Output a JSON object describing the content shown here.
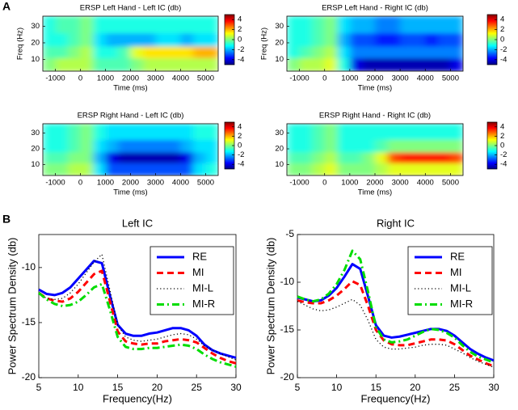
{
  "panel_labels": [
    "A",
    "B"
  ],
  "chart_data": [
    {
      "type": "heatmap",
      "title": "ERSP Left Hand - Left IC (db)",
      "xlabel": "Time (ms)",
      "ylabel": "Freq (Hz)",
      "colormap": "jet",
      "x_bins": [
        -1500,
        -1000,
        -500,
        0,
        500,
        1000,
        1500,
        2000,
        2500,
        3000,
        3500,
        4000,
        4500,
        5000,
        5500
      ],
      "y_bins": [
        3,
        11,
        18,
        26,
        36
      ],
      "values": [
        [
          0,
          0.5,
          0.5,
          0.5,
          -0.5,
          -0.5,
          -0.5,
          0,
          0.5,
          0.5,
          0.5,
          0.5,
          0.5,
          0.5
        ],
        [
          -0.5,
          -0.5,
          0,
          0.5,
          -1,
          -1,
          -0.5,
          1,
          1.5,
          1.5,
          1.5,
          1.5,
          2,
          2
        ],
        [
          -1,
          -1,
          -0.5,
          0,
          -1.5,
          -2,
          -2,
          -2,
          -2,
          -1.5,
          -1.5,
          -2,
          -1.5,
          -1.5
        ],
        [
          -1,
          -0.5,
          -0.5,
          0,
          -1,
          -1,
          -1,
          -1,
          -1,
          -1,
          -1,
          -1,
          -1,
          -1
        ]
      ],
      "xlim": [
        -1500,
        5500
      ],
      "ylim": [
        3,
        36
      ],
      "xticks": [
        -1000,
        0,
        1000,
        2000,
        3000,
        4000,
        5000
      ],
      "yticks": [
        10,
        20,
        30
      ],
      "colorbar": {
        "clim": [
          -5,
          5
        ],
        "ticks": [
          4,
          2,
          0,
          -2,
          -4
        ]
      }
    },
    {
      "type": "heatmap",
      "title": "ERSP Left Hand - Right IC (db)",
      "xlabel": "Time (ms)",
      "ylabel": "Freq (Hz)",
      "colormap": "jet",
      "x_bins": [
        -1500,
        -1000,
        -500,
        0,
        500,
        1000,
        1500,
        2000,
        2500,
        3000,
        3500,
        4000,
        4500,
        5000,
        5500
      ],
      "y_bins": [
        3,
        11,
        18,
        26,
        36
      ],
      "values": [
        [
          0,
          0.5,
          0.5,
          1,
          -1,
          -4,
          -4.5,
          -4.5,
          -4.5,
          -4.5,
          -4.5,
          -4.5,
          -4.5,
          -4
        ],
        [
          -1,
          -0.5,
          0,
          0.5,
          -1.5,
          -2.5,
          -2.5,
          -2.5,
          -2.5,
          -2.5,
          -2.5,
          -2.5,
          -2.5,
          -2.5
        ],
        [
          -1,
          -1,
          -0.5,
          0,
          -2,
          -3,
          -3,
          -3.5,
          -3.5,
          -3,
          -3,
          -3.5,
          -3,
          -3
        ],
        [
          -1,
          -1,
          -0.5,
          0,
          -1.5,
          -2,
          -2,
          -2.5,
          -2.5,
          -2,
          -2,
          -2,
          -2,
          -2
        ]
      ],
      "xlim": [
        -1500,
        5500
      ],
      "ylim": [
        3,
        36
      ],
      "xticks": [
        -1000,
        0,
        1000,
        2000,
        3000,
        4000,
        5000
      ],
      "yticks": [
        10,
        20,
        30
      ],
      "colorbar": {
        "clim": [
          -5,
          5
        ],
        "ticks": [
          4,
          2,
          0,
          -2,
          -4
        ]
      }
    },
    {
      "type": "heatmap",
      "title": "ERSP Right Hand - Left IC (db)",
      "xlabel": "Time (ms)",
      "colormap": "jet",
      "x_bins": [
        -1500,
        -1000,
        -500,
        0,
        500,
        1000,
        1500,
        2000,
        2500,
        3000,
        3500,
        4000,
        4500,
        5000,
        5500
      ],
      "y_bins": [
        3,
        11,
        18,
        26,
        36
      ],
      "values": [
        [
          0,
          0,
          0.5,
          0.5,
          -1.5,
          -3,
          -3,
          -3,
          -3,
          -3,
          -3,
          -3,
          -1.5,
          -1
        ],
        [
          -0.5,
          -0.5,
          0,
          0,
          -2,
          -4,
          -4.5,
          -4.5,
          -4.5,
          -4.5,
          -4.5,
          -4,
          -2,
          -1.5
        ],
        [
          -1,
          -1,
          -0.5,
          0,
          -1.5,
          -2,
          -2.5,
          -2.5,
          -2.5,
          -2.5,
          -2.5,
          -2,
          -1.5,
          -1.5
        ],
        [
          -1,
          -1,
          -0.5,
          0,
          -1,
          -1.5,
          -1.5,
          -1.5,
          -1.5,
          -1.5,
          -1.5,
          -1.5,
          -1,
          -1
        ]
      ],
      "xlim": [
        -1500,
        5500
      ],
      "ylim": [
        3,
        36
      ],
      "xticks": [
        -1000,
        0,
        1000,
        2000,
        3000,
        4000,
        5000
      ],
      "yticks": [
        10,
        20,
        30
      ],
      "colorbar": {
        "clim": [
          -5,
          5
        ],
        "ticks": [
          4,
          2,
          0,
          -2,
          -4
        ]
      }
    },
    {
      "type": "heatmap",
      "title": "ERSP Right Hand - Right IC (db)",
      "xlabel": "Time (ms)",
      "colormap": "jet",
      "x_bins": [
        -1500,
        -1000,
        -500,
        0,
        500,
        1000,
        1500,
        2000,
        2500,
        3000,
        3500,
        4000,
        4500,
        5000,
        5500
      ],
      "y_bins": [
        3,
        11,
        18,
        26,
        36
      ],
      "values": [
        [
          0,
          0,
          0.5,
          1,
          0,
          0,
          0,
          0.5,
          1,
          1,
          1,
          1,
          1,
          1
        ],
        [
          -0.5,
          -0.5,
          0,
          0.5,
          -0.5,
          -0.5,
          0,
          1,
          3,
          3.5,
          3.5,
          3.5,
          3.5,
          3
        ],
        [
          -1,
          -1,
          -0.5,
          0,
          -1,
          -1,
          -1,
          -0.5,
          0,
          0,
          0,
          0,
          0,
          0
        ],
        [
          -1,
          -1,
          -0.5,
          0,
          -1,
          -1,
          -1,
          -1,
          -1,
          -1,
          -1,
          -1,
          -1,
          -1
        ]
      ],
      "xlim": [
        -1500,
        5500
      ],
      "ylim": [
        3,
        36
      ],
      "xticks": [
        -1000,
        0,
        1000,
        2000,
        3000,
        4000,
        5000
      ],
      "yticks": [
        10,
        20,
        30
      ],
      "colorbar": {
        "clim": [
          -5,
          5
        ],
        "ticks": [
          4,
          2,
          0,
          -2,
          -4
        ]
      }
    },
    {
      "type": "line",
      "title": "Left IC",
      "xlabel": "Frequency(Hz)",
      "ylabel": "Power Spectrum Density (db)",
      "legend": "upper right",
      "x": [
        5,
        6,
        7,
        8,
        9,
        10,
        11,
        12,
        13,
        14,
        15,
        16,
        17,
        18,
        19,
        20,
        21,
        22,
        23,
        24,
        25,
        26,
        27,
        28,
        29,
        30
      ],
      "series": [
        {
          "name": "RE",
          "color": "#0000ff",
          "linestyle": "solid",
          "values": [
            -12,
            -12.4,
            -12.5,
            -12.3,
            -11.8,
            -11,
            -10.2,
            -9.4,
            -9.6,
            -12.5,
            -15.2,
            -16,
            -16.2,
            -16.2,
            -16,
            -15.9,
            -15.7,
            -15.5,
            -15.5,
            -15.7,
            -16.2,
            -17,
            -17.5,
            -17.8,
            -18,
            -18.2
          ]
        },
        {
          "name": "MI",
          "color": "#ff0000",
          "linestyle": "dashed",
          "values": [
            -12.3,
            -12.8,
            -13,
            -13.1,
            -12.8,
            -12.2,
            -11.4,
            -10.6,
            -10.3,
            -13,
            -15.8,
            -16.7,
            -16.9,
            -17,
            -16.9,
            -16.9,
            -16.7,
            -16.6,
            -16.5,
            -16.6,
            -16.8,
            -17.3,
            -17.8,
            -18.2,
            -18.5,
            -18.7
          ]
        },
        {
          "name": "MI-L",
          "color": "#000000",
          "linestyle": "dotted",
          "values": [
            -12.4,
            -12.8,
            -12.9,
            -12.8,
            -12.3,
            -11.5,
            -10.5,
            -9.5,
            -8.8,
            -12,
            -15.2,
            -16.3,
            -16.6,
            -16.7,
            -16.6,
            -16.5,
            -16.3,
            -16.1,
            -16,
            -16.1,
            -16.5,
            -17.1,
            -17.5,
            -17.8,
            -18.1,
            -18.4
          ]
        },
        {
          "name": "MI-R",
          "color": "#00dd00",
          "linestyle": "dashdot",
          "values": [
            -12.3,
            -12.9,
            -13.3,
            -13.5,
            -13.4,
            -13.1,
            -12.5,
            -11.8,
            -11.5,
            -13.8,
            -16.3,
            -17.2,
            -17.4,
            -17.4,
            -17.3,
            -17.3,
            -17.2,
            -17.1,
            -17,
            -17.1,
            -17.4,
            -17.9,
            -18.3,
            -18.6,
            -18.8,
            -19
          ]
        }
      ],
      "xlim": [
        5,
        30
      ],
      "ylim": [
        -20,
        -7
      ],
      "xticks": [
        5,
        10,
        15,
        20,
        25,
        30
      ],
      "yticks": [
        -20,
        -15,
        -10
      ]
    },
    {
      "type": "line",
      "title": "Right IC",
      "xlabel": "Frequency(Hz)",
      "ylabel": "Power Spectrum Density (db)",
      "legend": "upper right",
      "x": [
        5,
        6,
        7,
        8,
        9,
        10,
        11,
        12,
        13,
        14,
        15,
        16,
        17,
        18,
        19,
        20,
        21,
        22,
        23,
        24,
        25,
        26,
        27,
        28,
        29,
        30
      ],
      "series": [
        {
          "name": "RE",
          "color": "#0000ff",
          "linestyle": "solid",
          "values": [
            -11.6,
            -11.8,
            -12,
            -11.9,
            -11.4,
            -10.6,
            -9.4,
            -8.1,
            -8.6,
            -11.5,
            -14.5,
            -15.6,
            -15.8,
            -15.7,
            -15.5,
            -15.3,
            -15.1,
            -14.9,
            -14.9,
            -15.1,
            -15.6,
            -16.3,
            -17,
            -17.5,
            -17.9,
            -18.2
          ]
        },
        {
          "name": "MI",
          "color": "#ff0000",
          "linestyle": "dashed",
          "values": [
            -11.9,
            -12.1,
            -12.2,
            -12.2,
            -11.9,
            -11.4,
            -10.7,
            -9.9,
            -10.3,
            -12.5,
            -15,
            -16.1,
            -16.5,
            -16.6,
            -16.6,
            -16.4,
            -16.2,
            -16,
            -16,
            -16.1,
            -16.5,
            -17.1,
            -17.7,
            -18.1,
            -18.5,
            -18.8
          ]
        },
        {
          "name": "MI-L",
          "color": "#000000",
          "linestyle": "dotted",
          "values": [
            -12,
            -12.4,
            -12.8,
            -13,
            -12.9,
            -12.6,
            -12.2,
            -11.8,
            -12.4,
            -14,
            -16,
            -16.8,
            -17,
            -17,
            -16.9,
            -16.8,
            -16.6,
            -16.5,
            -16.5,
            -16.6,
            -17,
            -17.4,
            -17.9,
            -18.3,
            -18.6,
            -18.9
          ]
        },
        {
          "name": "MI-R",
          "color": "#00dd00",
          "linestyle": "dashdot",
          "values": [
            -11.5,
            -11.8,
            -12,
            -11.8,
            -11.2,
            -10.2,
            -8.7,
            -6.7,
            -7.6,
            -11,
            -14.7,
            -16,
            -16.3,
            -16.2,
            -16,
            -15.6,
            -15.2,
            -14.9,
            -15,
            -15.3,
            -15.8,
            -16.6,
            -17.3,
            -17.8,
            -18.1,
            -18.4
          ]
        }
      ],
      "xlim": [
        5,
        30
      ],
      "ylim": [
        -20,
        -5
      ],
      "xticks": [
        5,
        10,
        15,
        20,
        25,
        30
      ],
      "yticks": [
        -20,
        -15,
        -10,
        -5
      ]
    }
  ]
}
